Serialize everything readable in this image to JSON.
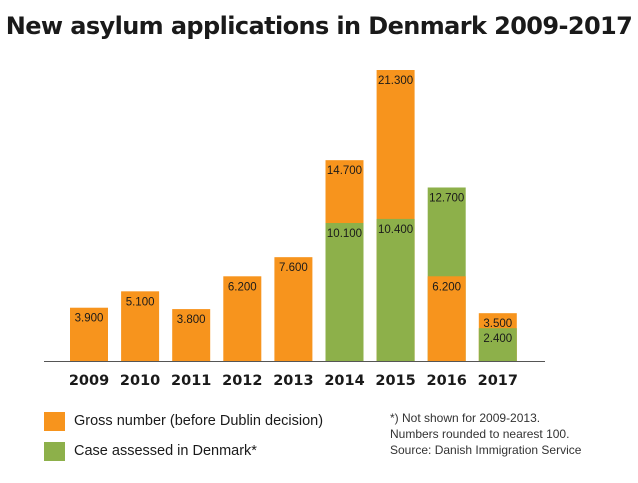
{
  "title": "New asylum applications in Denmark 2009-2017",
  "colors": {
    "gross": "#F7941D",
    "assessed": "#8DB04A",
    "axis": "#555555",
    "label_text": "#1a1a1a"
  },
  "legend": [
    {
      "key": "gross",
      "label": "Gross number (before Dublin decision)"
    },
    {
      "key": "assessed",
      "label": "Case assessed in Denmark*"
    }
  ],
  "notes": [
    "*) Not shown for 2009-2013.",
    "Numbers rounded to nearest 100.",
    "Source: Danish Immigration Service"
  ],
  "chart_data": {
    "type": "bar",
    "categories": [
      "2009",
      "2010",
      "2011",
      "2012",
      "2013",
      "2014",
      "2015",
      "2016",
      "2017"
    ],
    "series": [
      {
        "name": "Gross number (before Dublin decision)",
        "values": [
          3900,
          5100,
          3800,
          6200,
          7600,
          14700,
          21300,
          6200,
          3500
        ],
        "labels": [
          "3.900",
          "5.100",
          "3.800",
          "6.200",
          "7.600",
          "14.700",
          "21.300",
          "6.200",
          "3.500"
        ]
      },
      {
        "name": "Case assessed in Denmark*",
        "values": [
          null,
          null,
          null,
          null,
          null,
          10100,
          10400,
          12700,
          2400
        ],
        "labels": [
          "",
          "",
          "",
          "",
          "",
          "10.100",
          "10.400",
          "12.700",
          "2.400"
        ]
      }
    ],
    "ylim": [
      0,
      21300
    ],
    "grid": false
  }
}
